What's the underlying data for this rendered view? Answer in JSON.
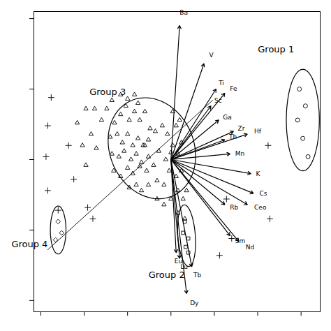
{
  "chart_data": {
    "type": "scatter",
    "xlim": [
      -1.58,
      1.72
    ],
    "ylim": [
      -1.08,
      1.05
    ],
    "xticks": [
      -1.5,
      -1,
      -0.5,
      0,
      0.5,
      1,
      1.5
    ],
    "yticks": [
      -1,
      -0.5,
      0,
      0.5,
      1
    ],
    "tick_labels": false,
    "grid": false,
    "line": {
      "x": [
        -1.42,
        0.48
      ],
      "y": [
        -0.64,
        0.42
      ]
    },
    "origin": [
      0.0,
      0.0
    ],
    "arrows": [
      {
        "label": "Ba",
        "dx": 0.1,
        "dy": 0.95,
        "label_x": 0.1,
        "label_y": 1.04
      },
      {
        "label": "V",
        "dx": 0.38,
        "dy": 0.68,
        "label_x": 0.44,
        "label_y": 0.74
      },
      {
        "label": "Ti",
        "dx": 0.52,
        "dy": 0.5,
        "label_x": 0.55,
        "label_y": 0.54
      },
      {
        "label": "Fe",
        "dx": 0.62,
        "dy": 0.47,
        "label_x": 0.68,
        "label_y": 0.5
      },
      {
        "label": "Sc",
        "dx": 0.46,
        "dy": 0.38,
        "label_x": 0.5,
        "label_y": 0.42
      },
      {
        "label": "Ga",
        "dx": 0.55,
        "dy": 0.28,
        "label_x": 0.6,
        "label_y": 0.3
      },
      {
        "label": "Zr",
        "dx": 0.72,
        "dy": 0.2,
        "label_x": 0.77,
        "label_y": 0.22
      },
      {
        "label": "Hf",
        "dx": 0.88,
        "dy": 0.18,
        "label_x": 0.96,
        "label_y": 0.2
      },
      {
        "label": "Th",
        "dx": 0.62,
        "dy": 0.14,
        "label_x": 0.67,
        "label_y": 0.16
      },
      {
        "label": "Mn",
        "dx": 0.68,
        "dy": 0.04,
        "label_x": 0.74,
        "label_y": 0.04
      },
      {
        "label": "K",
        "dx": 0.92,
        "dy": -0.1,
        "label_x": 0.98,
        "label_y": -0.1
      },
      {
        "label": "Rb",
        "dx": 0.62,
        "dy": -0.32,
        "label_x": 0.68,
        "label_y": -0.34
      },
      {
        "label": "Cs",
        "dx": 0.95,
        "dy": -0.24,
        "label_x": 1.02,
        "label_y": -0.24
      },
      {
        "label": "Ceo",
        "dx": 0.88,
        "dy": -0.32,
        "label_x": 0.96,
        "label_y": -0.34
      },
      {
        "label": "Sm",
        "dx": 0.68,
        "dy": -0.54,
        "label_x": 0.74,
        "label_y": -0.58
      },
      {
        "label": "Nd",
        "dx": 0.78,
        "dy": -0.58,
        "label_x": 0.86,
        "label_y": -0.62
      },
      {
        "label": "Tb",
        "dx": 0.24,
        "dy": -0.76,
        "label_x": 0.26,
        "label_y": -0.82
      },
      {
        "label": "Dy",
        "dx": 0.18,
        "dy": -0.95,
        "label_x": 0.22,
        "label_y": -1.02
      },
      {
        "label": "Lu",
        "dx": 0.1,
        "dy": -0.7,
        "label_x": 0.11,
        "label_y": -0.76
      },
      {
        "label": "Eu",
        "dx": 0.06,
        "dy": -0.66,
        "label_x": 0.04,
        "label_y": -0.72
      }
    ],
    "ellipses": [
      {
        "label": "Group 3",
        "label_x": -0.52,
        "label_y": 0.48,
        "cx": -0.22,
        "cy": 0.08,
        "w": 1.02,
        "h": 0.7,
        "angle": -12
      },
      {
        "label": "Group 2",
        "label_x": 0.16,
        "label_y": -0.82,
        "cx": 0.18,
        "cy": -0.54,
        "w": 0.2,
        "h": 0.44,
        "angle": 8
      },
      {
        "label": "Group 4",
        "label_x": -1.42,
        "label_y": -0.6,
        "cx": -1.3,
        "cy": -0.5,
        "w": 0.18,
        "h": 0.34,
        "angle": 0
      },
      {
        "label": "Group 1",
        "label_x": 1.42,
        "label_y": 0.78,
        "cx": 1.52,
        "cy": 0.28,
        "w": 0.38,
        "h": 0.72,
        "angle": 0
      }
    ],
    "series": [
      {
        "marker": "triangle",
        "values": [
          [
            -0.88,
            0.36
          ],
          [
            -0.8,
            0.28
          ],
          [
            -0.74,
            0.36
          ],
          [
            -0.68,
            0.42
          ],
          [
            -0.65,
            0.26
          ],
          [
            -0.58,
            0.32
          ],
          [
            -0.52,
            0.38
          ],
          [
            -0.48,
            0.28
          ],
          [
            -0.42,
            0.34
          ],
          [
            -0.38,
            0.4
          ],
          [
            -0.36,
            0.28
          ],
          [
            -0.3,
            0.34
          ],
          [
            -0.7,
            0.16
          ],
          [
            -0.62,
            0.18
          ],
          [
            -0.56,
            0.12
          ],
          [
            -0.5,
            0.18
          ],
          [
            -0.44,
            0.1
          ],
          [
            -0.38,
            0.15
          ],
          [
            -0.32,
            0.1
          ],
          [
            -0.26,
            0.14
          ],
          [
            -0.68,
            0.04
          ],
          [
            -0.6,
            0.02
          ],
          [
            -0.54,
            0.06
          ],
          [
            -0.46,
            0.0
          ],
          [
            -0.4,
            0.04
          ],
          [
            -0.34,
            -0.02
          ],
          [
            -0.26,
            0.02
          ],
          [
            -0.66,
            -0.08
          ],
          [
            -0.58,
            -0.12
          ],
          [
            -0.5,
            -0.06
          ],
          [
            -0.44,
            -0.1
          ],
          [
            -0.36,
            -0.05
          ],
          [
            -0.28,
            -0.08
          ],
          [
            -0.2,
            -0.04
          ],
          [
            -0.48,
            -0.2
          ],
          [
            -0.4,
            -0.18
          ],
          [
            -0.34,
            -0.22
          ],
          [
            -0.26,
            -0.18
          ],
          [
            -0.16,
            -0.15
          ],
          [
            -0.08,
            -0.18
          ],
          [
            -0.58,
            0.46
          ],
          [
            -0.5,
            0.43
          ],
          [
            -0.42,
            0.46
          ],
          [
            -1.08,
            0.26
          ],
          [
            -1.02,
            0.1
          ],
          [
            -0.98,
            -0.04
          ],
          [
            -0.98,
            0.36
          ],
          [
            -0.92,
            0.18
          ],
          [
            -0.86,
            0.08
          ],
          [
            -0.18,
            0.2
          ],
          [
            -0.1,
            0.24
          ],
          [
            -0.04,
            0.18
          ],
          [
            0.02,
            0.34
          ],
          [
            0.06,
            0.24
          ],
          [
            0.1,
            0.28
          ],
          [
            0.02,
            0.1
          ],
          [
            0.08,
            0.04
          ],
          [
            0.12,
            0.12
          ],
          [
            -0.14,
            0.06
          ],
          [
            -0.06,
            0.0
          ],
          [
            0.0,
            0.05
          ],
          [
            -0.02,
            -0.08
          ],
          [
            0.06,
            -0.12
          ],
          [
            0.12,
            -0.08
          ],
          [
            -0.16,
            -0.28
          ],
          [
            -0.08,
            -0.32
          ],
          [
            0.0,
            -0.28
          ],
          [
            0.08,
            -0.22
          ],
          [
            0.14,
            -0.28
          ],
          [
            0.18,
            -0.22
          ],
          [
            0.08,
            -0.38
          ],
          [
            0.16,
            -0.42
          ],
          [
            -0.24,
            0.22
          ],
          [
            -0.3,
            0.1
          ]
        ]
      },
      {
        "marker": "plus",
        "values": [
          [
            -1.38,
            0.44
          ],
          [
            -1.42,
            0.24
          ],
          [
            -1.44,
            0.02
          ],
          [
            -1.42,
            -0.22
          ],
          [
            -1.3,
            -0.36
          ],
          [
            -1.12,
            -0.14
          ],
          [
            -1.18,
            0.1
          ],
          [
            -0.96,
            -0.34
          ],
          [
            -0.9,
            -0.42
          ],
          [
            0.64,
            -0.28
          ],
          [
            0.7,
            -0.56
          ],
          [
            0.56,
            -0.68
          ],
          [
            1.12,
            0.1
          ],
          [
            1.14,
            -0.42
          ]
        ]
      },
      {
        "marker": "circle",
        "values": [
          [
            1.48,
            0.5
          ],
          [
            1.55,
            0.38
          ],
          [
            1.46,
            0.28
          ],
          [
            1.52,
            0.15
          ],
          [
            1.58,
            0.02
          ]
        ]
      },
      {
        "marker": "square",
        "values": [
          [
            0.16,
            -0.44
          ],
          [
            0.14,
            -0.52
          ],
          [
            0.2,
            -0.56
          ],
          [
            0.17,
            -0.62
          ],
          [
            0.2,
            -0.66
          ]
        ]
      },
      {
        "marker": "diamond",
        "values": [
          [
            -1.3,
            -0.44
          ],
          [
            -1.26,
            -0.52
          ],
          [
            -1.33,
            -0.57
          ]
        ]
      }
    ]
  }
}
